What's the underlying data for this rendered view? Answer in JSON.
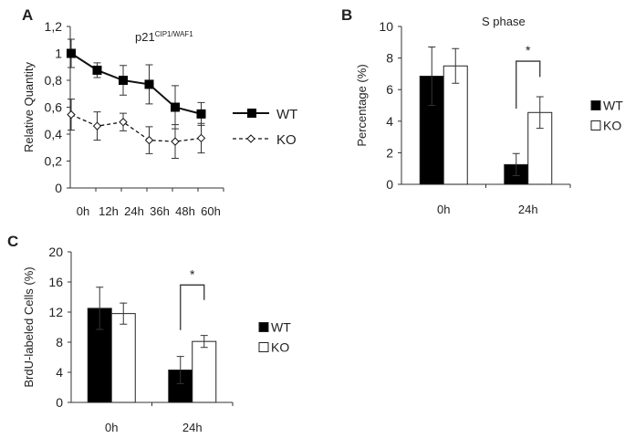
{
  "chart_data": [
    {
      "panel": "A",
      "type": "line",
      "title": "p21",
      "title_sup": "CIP1/WAF1",
      "ylabel": "Relative Quantity",
      "categories": [
        "0h",
        "12h",
        "24h",
        "36h",
        "48h",
        "60h"
      ],
      "ylim": [
        0,
        1.2
      ],
      "yticks": [
        "0",
        "0,2",
        "0,4",
        "0,6",
        "0,8",
        "1",
        "1,2"
      ],
      "series": [
        {
          "name": "WT",
          "values": [
            1.0,
            0.875,
            0.8,
            0.77,
            0.6,
            0.55
          ],
          "errors": [
            0.105,
            0.055,
            0.11,
            0.145,
            0.16,
            0.085
          ],
          "marker": "filled-square",
          "line": "solid"
        },
        {
          "name": "KO",
          "values": [
            0.545,
            0.46,
            0.49,
            0.355,
            0.345,
            0.37
          ],
          "errors": [
            0.115,
            0.105,
            0.065,
            0.1,
            0.125,
            0.11
          ],
          "marker": "open-diamond",
          "line": "dashed"
        }
      ],
      "legend": "right"
    },
    {
      "panel": "B",
      "type": "bar",
      "title": "S phase",
      "ylabel": "Percentage (%)",
      "categories": [
        "0h",
        "24h"
      ],
      "ylim": [
        0,
        10
      ],
      "yticks": [
        "0",
        "2",
        "4",
        "6",
        "8",
        "10"
      ],
      "series": [
        {
          "name": "WT",
          "values": [
            6.85,
            1.25
          ],
          "errors": [
            1.85,
            0.7
          ],
          "color": "#000000"
        },
        {
          "name": "KO",
          "values": [
            7.5,
            4.55
          ],
          "errors": [
            1.1,
            1.0
          ],
          "color": "#ffffff"
        }
      ],
      "annotation": "*",
      "legend": "right"
    },
    {
      "panel": "C",
      "type": "bar",
      "title": "",
      "ylabel": "BrdU-labeled Cells (%)",
      "categories": [
        "0h",
        "24h"
      ],
      "ylim": [
        0,
        20
      ],
      "yticks": [
        "0",
        "4",
        "8",
        "12",
        "16",
        "20"
      ],
      "series": [
        {
          "name": "WT",
          "values": [
            12.5,
            4.3
          ],
          "errors": [
            2.8,
            1.8
          ],
          "color": "#000000"
        },
        {
          "name": "KO",
          "values": [
            11.8,
            8.1
          ],
          "errors": [
            1.4,
            0.8
          ],
          "color": "#ffffff"
        }
      ],
      "annotation": "*",
      "legend": "right"
    }
  ]
}
